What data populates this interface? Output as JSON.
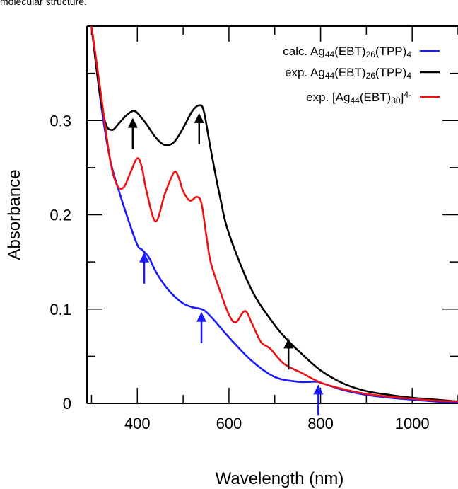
{
  "caption_fragment": "molecular structure.",
  "chart_data": {
    "type": "line",
    "xlabel": "Wavelength (nm)",
    "ylabel": "Absorbance",
    "xlim": [
      290,
      1100
    ],
    "ylim": [
      0,
      0.4
    ],
    "x_ticks": [
      400,
      600,
      800,
      1000
    ],
    "x_tick_labels": [
      "400",
      "600",
      "800",
      "1000"
    ],
    "y_ticks": [
      0,
      0.1,
      0.2,
      0.3
    ],
    "y_tick_labels": [
      "0",
      "0.1",
      "0.2",
      "0.3"
    ],
    "grid": false,
    "legend_position": "top-right",
    "series": [
      {
        "name": "calc. Ag44(EBT)26(TPP)4",
        "legend_parts": [
          [
            "calc. Ag",
            ""
          ],
          [
            "44",
            "sub"
          ],
          [
            "(EBT)",
            ""
          ],
          [
            "26",
            "sub"
          ],
          [
            "(TPP)",
            ""
          ],
          [
            "4",
            "sub"
          ]
        ],
        "color": "#1a1aff",
        "x": [
          300,
          320,
          340,
          360,
          380,
          400,
          410,
          425,
          440,
          460,
          480,
          500,
          520,
          540,
          550,
          570,
          600,
          650,
          700,
          750,
          790,
          800,
          850,
          900,
          950,
          1000,
          1050,
          1100
        ],
        "y": [
          0.4,
          0.32,
          0.26,
          0.225,
          0.195,
          0.168,
          0.163,
          0.155,
          0.14,
          0.125,
          0.114,
          0.106,
          0.102,
          0.1,
          0.097,
          0.087,
          0.07,
          0.045,
          0.028,
          0.023,
          0.023,
          0.022,
          0.014,
          0.009,
          0.006,
          0.004,
          0.002,
          0.001
        ]
      },
      {
        "name": "exp. Ag44(EBT)26(TPP)4",
        "legend_parts": [
          [
            "exp. Ag",
            ""
          ],
          [
            "44",
            "sub"
          ],
          [
            "(EBT)",
            ""
          ],
          [
            "26",
            "sub"
          ],
          [
            "(TPP)",
            ""
          ],
          [
            "4",
            "sub"
          ]
        ],
        "color": "#000000",
        "x": [
          300,
          315,
          330,
          345,
          360,
          375,
          390,
          400,
          420,
          440,
          460,
          480,
          500,
          520,
          535,
          545,
          560,
          580,
          600,
          650,
          700,
          730,
          760,
          800,
          850,
          900,
          950,
          1000,
          1050,
          1100
        ],
        "y": [
          0.4,
          0.34,
          0.298,
          0.29,
          0.297,
          0.305,
          0.31,
          0.308,
          0.296,
          0.282,
          0.274,
          0.277,
          0.292,
          0.31,
          0.316,
          0.31,
          0.27,
          0.22,
          0.18,
          0.12,
          0.083,
          0.066,
          0.052,
          0.035,
          0.021,
          0.013,
          0.009,
          0.006,
          0.004,
          0.002
        ]
      },
      {
        "name": "exp. [Ag44(EBT)30]4-",
        "legend_parts": [
          [
            "exp. [Ag",
            ""
          ],
          [
            "44",
            "sub"
          ],
          [
            "(EBT)",
            ""
          ],
          [
            "30",
            "sub"
          ],
          [
            "]",
            ""
          ],
          [
            "4-",
            "sup"
          ]
        ],
        "color": "#ee1111",
        "x": [
          300,
          320,
          340,
          355,
          370,
          385,
          400,
          410,
          420,
          440,
          460,
          480,
          490,
          500,
          515,
          530,
          540,
          550,
          560,
          580,
          600,
          615,
          635,
          650,
          670,
          690,
          720,
          760,
          800,
          850,
          900,
          950,
          1000,
          1050,
          1100
        ],
        "y": [
          0.4,
          0.33,
          0.26,
          0.232,
          0.229,
          0.245,
          0.26,
          0.25,
          0.225,
          0.193,
          0.222,
          0.245,
          0.24,
          0.225,
          0.215,
          0.219,
          0.212,
          0.18,
          0.15,
          0.12,
          0.094,
          0.086,
          0.098,
          0.085,
          0.065,
          0.058,
          0.042,
          0.032,
          0.022,
          0.015,
          0.01,
          0.007,
          0.005,
          0.003,
          0.002
        ]
      }
    ],
    "annotations": [
      {
        "type": "arrow-down",
        "color": "#000000",
        "x": 390,
        "y": 0.305
      },
      {
        "type": "arrow-down",
        "color": "#000000",
        "x": 535,
        "y": 0.31
      },
      {
        "type": "arrow-down",
        "color": "#000000",
        "x": 730,
        "y": 0.071
      },
      {
        "type": "arrow-up",
        "color": "#1a1aff",
        "x": 415,
        "y": 0.163
      },
      {
        "type": "arrow-up",
        "color": "#1a1aff",
        "x": 540,
        "y": 0.1
      },
      {
        "type": "arrow-up",
        "color": "#1a1aff",
        "x": 795,
        "y": 0.023
      }
    ]
  }
}
